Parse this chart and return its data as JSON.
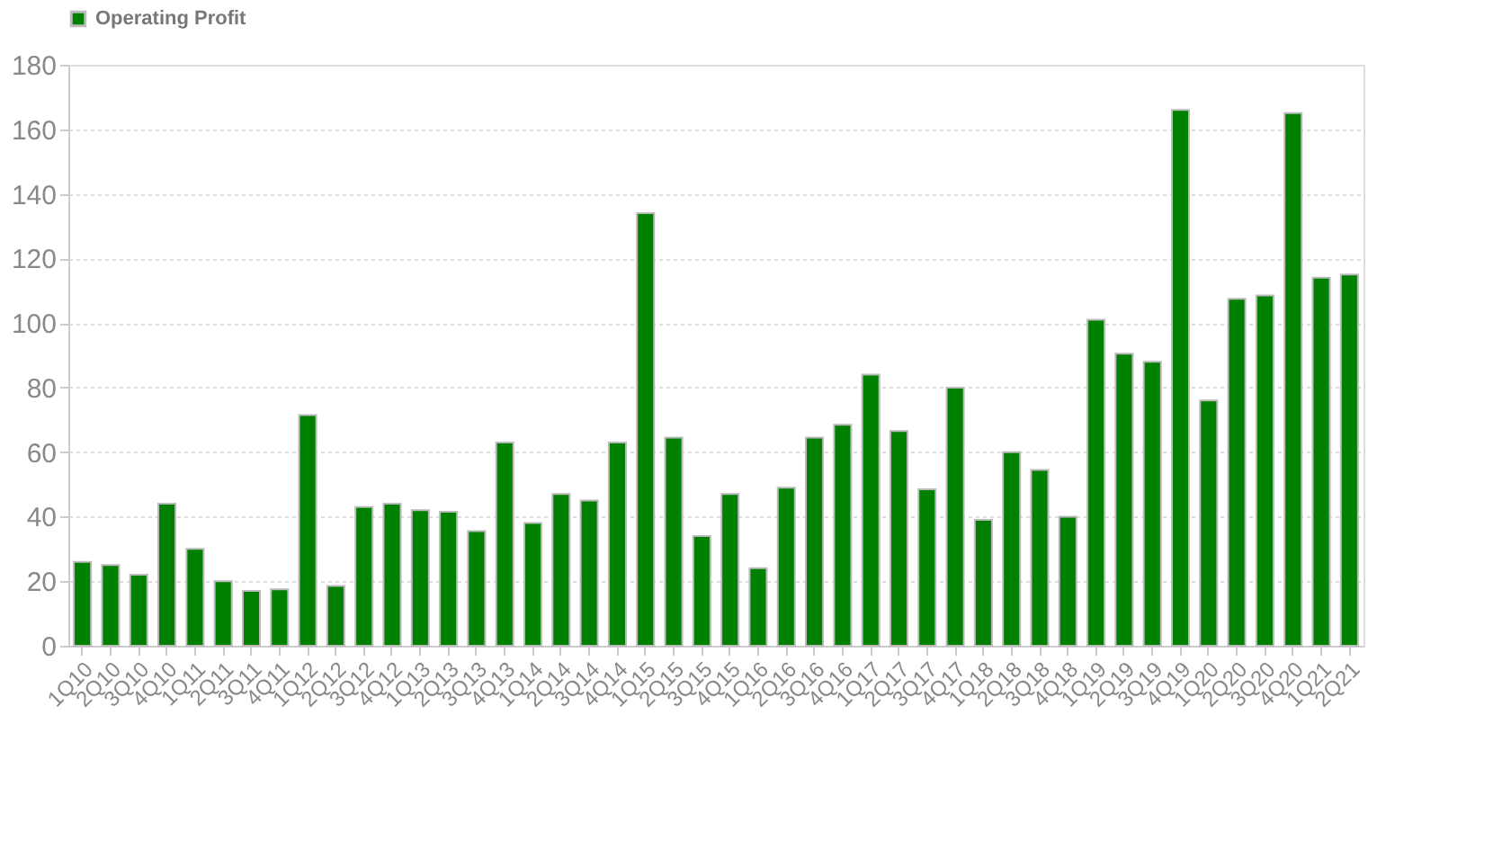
{
  "chart_data": {
    "type": "bar",
    "categories": [
      "1Q10",
      "2Q10",
      "3Q10",
      "4Q10",
      "1Q11",
      "2Q11",
      "3Q11",
      "4Q11",
      "1Q12",
      "2Q12",
      "3Q12",
      "4Q12",
      "1Q13",
      "2Q13",
      "3Q13",
      "4Q13",
      "1Q14",
      "2Q14",
      "3Q14",
      "4Q14",
      "1Q15",
      "2Q15",
      "3Q15",
      "4Q15",
      "1Q16",
      "2Q16",
      "3Q16",
      "4Q16",
      "1Q17",
      "2Q17",
      "3Q17",
      "4Q17",
      "1Q18",
      "2Q18",
      "3Q18",
      "4Q18",
      "1Q19",
      "2Q19",
      "3Q19",
      "4Q19",
      "1Q20",
      "2Q20",
      "3Q20",
      "4Q20",
      "1Q21",
      "2Q21"
    ],
    "series": [
      {
        "name": "Operating Profit",
        "color": "#008000",
        "values": [
          26,
          25,
          22,
          44,
          30,
          20,
          17,
          17.5,
          71.5,
          18.5,
          43,
          44,
          42,
          41.5,
          35.5,
          63,
          38,
          47,
          45,
          63,
          134,
          64.5,
          34,
          47,
          24,
          49,
          64.5,
          68.5,
          84,
          66.5,
          48.5,
          80,
          39,
          60,
          54.5,
          40,
          101,
          90.5,
          88,
          166,
          76,
          107.5,
          108.5,
          165,
          114,
          115
        ]
      }
    ],
    "ylim": [
      0,
      180
    ],
    "yticks": [
      0,
      20,
      40,
      60,
      80,
      100,
      120,
      140,
      160,
      180
    ],
    "grid": "y",
    "legend": "top"
  }
}
